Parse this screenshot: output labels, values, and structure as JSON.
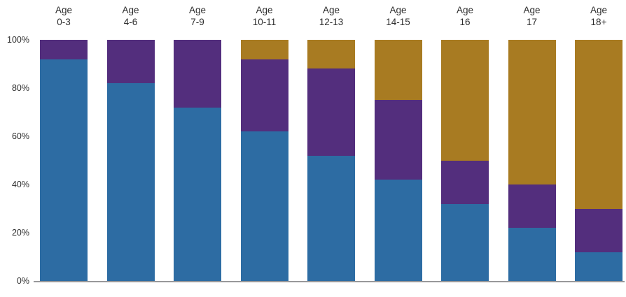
{
  "chart_data": {
    "type": "bar",
    "stacked": true,
    "percent_stacked": true,
    "title": "",
    "xlabel": "",
    "ylabel": "",
    "category_label_prefix": "Age",
    "categories": [
      "0-3",
      "4-6",
      "7-9",
      "10-11",
      "12-13",
      "14-15",
      "16",
      "17",
      "18+"
    ],
    "series": [
      {
        "name": "blue",
        "color": "#2d6ca3",
        "values": [
          92,
          82,
          72,
          62,
          52,
          42,
          32,
          22,
          12
        ]
      },
      {
        "name": "purple",
        "color": "#532e7d",
        "values": [
          8,
          18,
          28,
          30,
          36,
          33,
          18,
          18,
          18
        ]
      },
      {
        "name": "gold",
        "color": "#a87b22",
        "values": [
          0,
          0,
          0,
          8,
          12,
          25,
          50,
          60,
          70
        ]
      }
    ],
    "y_axis": {
      "ticks": [
        100,
        80,
        60,
        40,
        20,
        0
      ],
      "tick_labels": [
        "100%",
        "80%",
        "60%",
        "40%",
        "20%",
        "0%"
      ],
      "ylim": [
        0,
        100
      ]
    },
    "grid": false,
    "legend": "none",
    "axis_line_color": "#98989a"
  }
}
